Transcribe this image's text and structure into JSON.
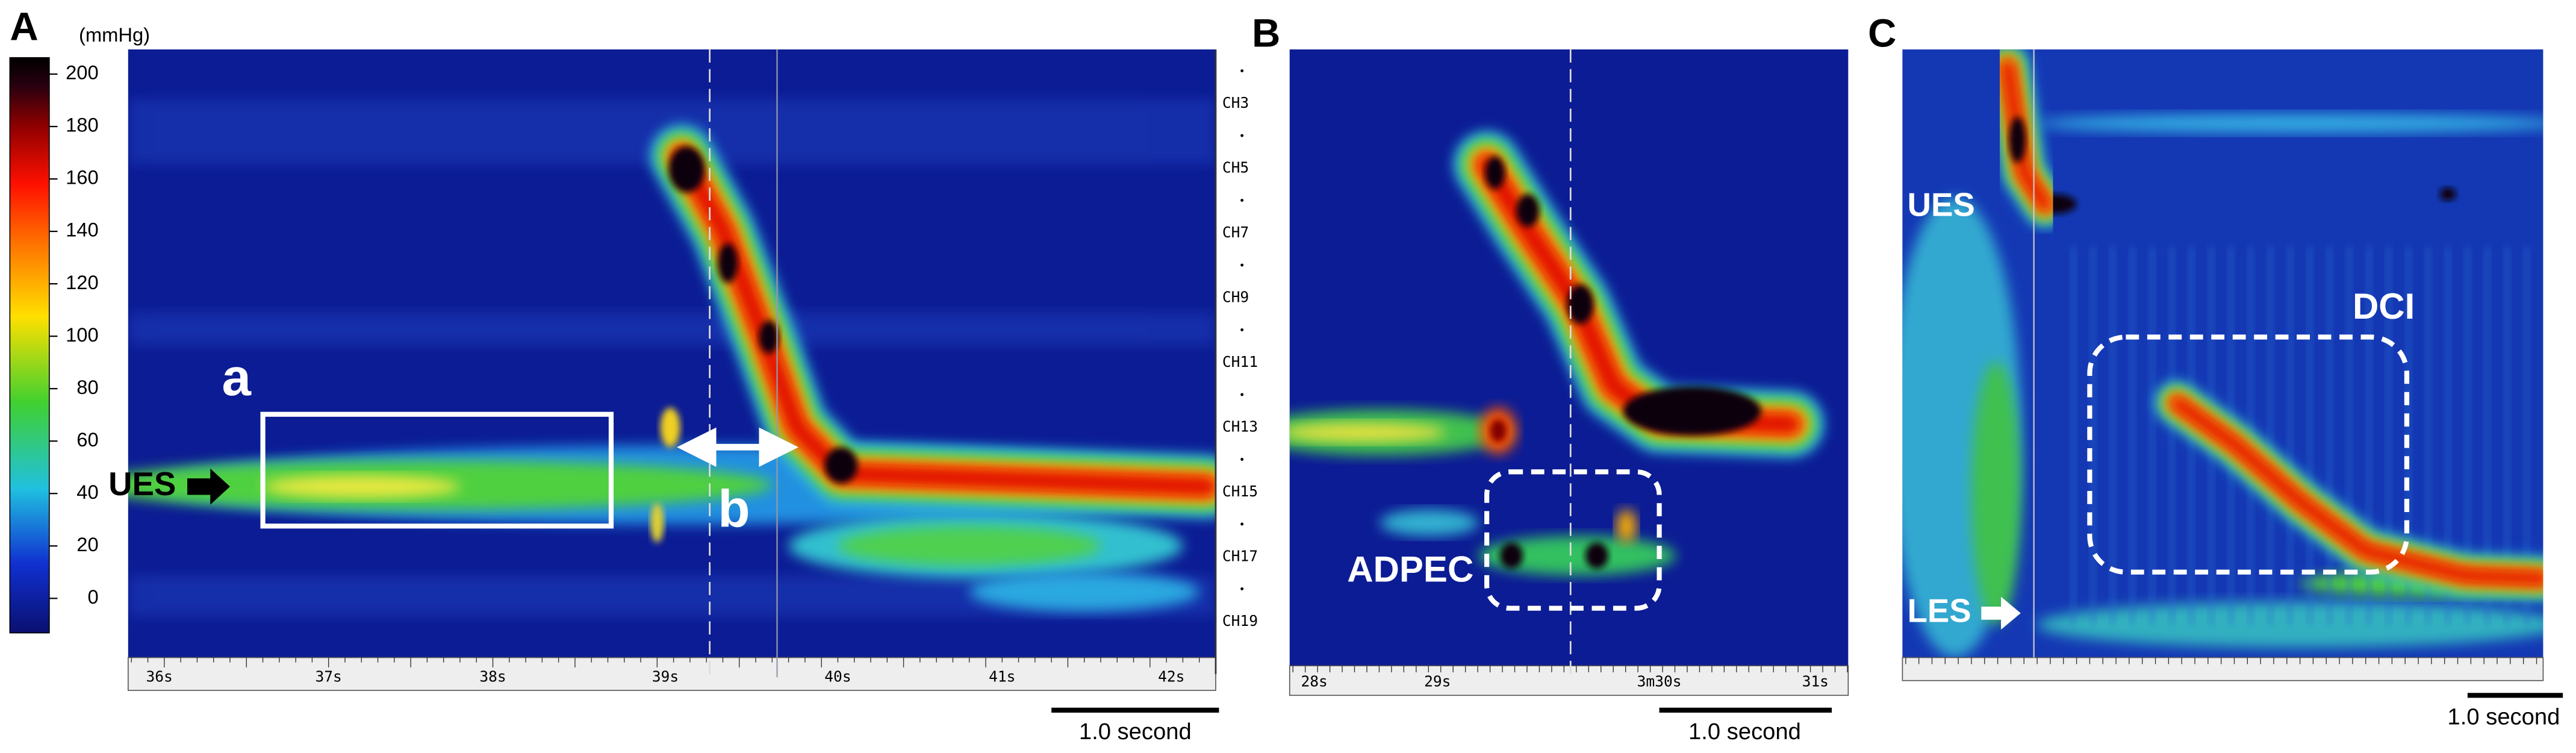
{
  "colorbar": {
    "unit": "(mmHg)",
    "ticks": [
      0,
      20,
      40,
      60,
      80,
      100,
      120,
      140,
      160,
      180,
      200
    ]
  },
  "panels": [
    {
      "label": "A",
      "channels": [
        "CH3",
        "CH5",
        "CH7",
        "CH9",
        "CH11",
        "CH13",
        "CH15",
        "CH17",
        "CH19"
      ],
      "time_labels": [
        "36s",
        "37s",
        "38s",
        "39s",
        "40s",
        "41s",
        "42s"
      ],
      "annotations": {
        "box_label": "a",
        "interval_label": "b",
        "ues": "UES"
      },
      "scale_bar": "1.0 second"
    },
    {
      "label": "B",
      "time_labels": [
        "28s",
        "29s",
        "3m30s",
        "31s"
      ],
      "annotations": {
        "adpec": "ADPEC"
      },
      "scale_bar": "1.0 second"
    },
    {
      "label": "C",
      "annotations": {
        "ues": "UES",
        "dci": "DCI",
        "les": "LES"
      },
      "scale_bar": "1.0 second"
    }
  ]
}
